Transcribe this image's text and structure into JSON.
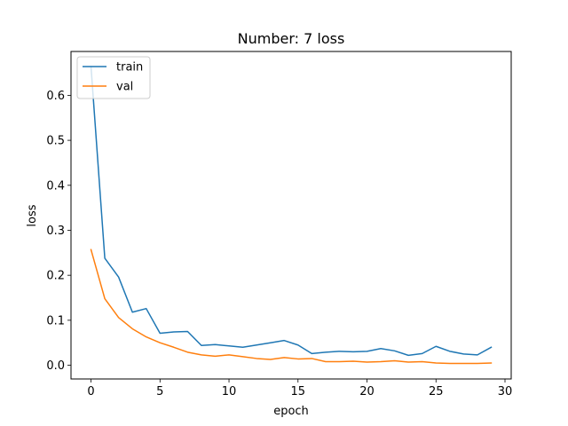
{
  "chart_data": {
    "type": "line",
    "title": "Number: 7 loss",
    "xlabel": "epoch",
    "ylabel": "loss",
    "xlim": [
      -1.45,
      30.45
    ],
    "ylim": [
      -0.0305,
      0.6975
    ],
    "xticks": [
      0,
      5,
      10,
      15,
      20,
      25,
      30
    ],
    "yticks": [
      0.0,
      0.1,
      0.2,
      0.3,
      0.4,
      0.5,
      0.6
    ],
    "xtick_labels": [
      "0",
      "5",
      "10",
      "15",
      "20",
      "25",
      "30"
    ],
    "ytick_labels": [
      "0.0",
      "0.1",
      "0.2",
      "0.3",
      "0.4",
      "0.5",
      "0.6"
    ],
    "grid": false,
    "legend": "upper left",
    "x": [
      0,
      1,
      2,
      3,
      4,
      5,
      6,
      7,
      8,
      9,
      10,
      11,
      12,
      13,
      14,
      15,
      16,
      17,
      18,
      19,
      20,
      21,
      22,
      23,
      24,
      25,
      26,
      27,
      28,
      29
    ],
    "series": [
      {
        "name": "train",
        "color": "#1f77b4",
        "values": [
          0.664,
          0.238,
          0.196,
          0.118,
          0.126,
          0.071,
          0.074,
          0.075,
          0.044,
          0.046,
          0.043,
          0.04,
          0.045,
          0.05,
          0.055,
          0.045,
          0.026,
          0.029,
          0.031,
          0.03,
          0.031,
          0.037,
          0.032,
          0.022,
          0.026,
          0.042,
          0.031,
          0.025,
          0.023,
          0.04
        ]
      },
      {
        "name": "val",
        "color": "#ff7f0e",
        "values": [
          0.257,
          0.148,
          0.106,
          0.081,
          0.063,
          0.05,
          0.04,
          0.029,
          0.023,
          0.02,
          0.023,
          0.019,
          0.015,
          0.013,
          0.017,
          0.014,
          0.015,
          0.008,
          0.008,
          0.009,
          0.007,
          0.008,
          0.01,
          0.007,
          0.008,
          0.005,
          0.004,
          0.004,
          0.004,
          0.005
        ]
      }
    ]
  }
}
